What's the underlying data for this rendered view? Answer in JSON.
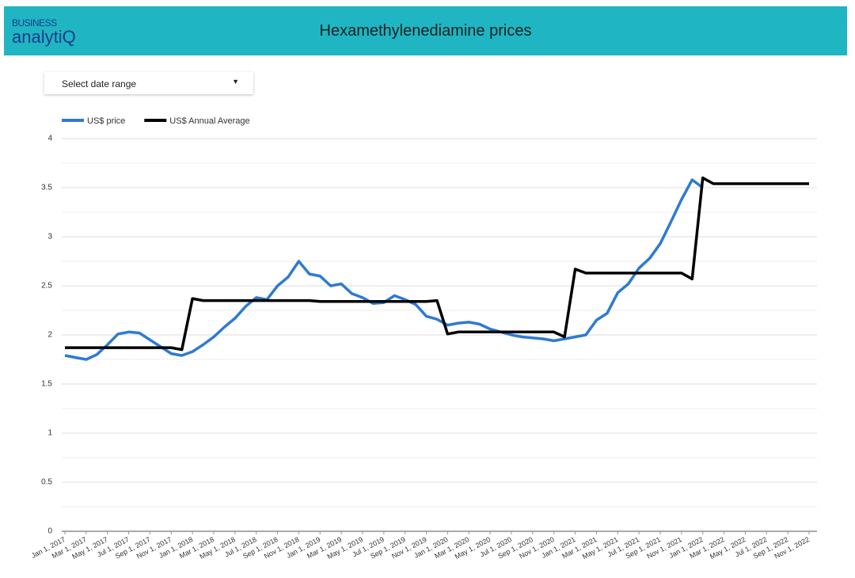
{
  "header": {
    "logo_top": "BUSINESS",
    "logo_bottom": "analytiQ"
  },
  "controls": {
    "date_range": "Select date range"
  },
  "chart_data": {
    "type": "line",
    "title": "Hexamethylenediamine prices",
    "x": [
      "2017-01-01",
      "2017-02-01",
      "2017-03-01",
      "2017-04-01",
      "2017-05-01",
      "2017-06-01",
      "2017-07-01",
      "2017-08-01",
      "2017-09-01",
      "2017-10-01",
      "2017-11-01",
      "2017-12-01",
      "2018-01-01",
      "2018-02-01",
      "2018-03-01",
      "2018-04-01",
      "2018-05-01",
      "2018-06-01",
      "2018-07-01",
      "2018-08-01",
      "2018-09-01",
      "2018-10-01",
      "2018-11-01",
      "2018-12-01",
      "2019-01-01",
      "2019-02-01",
      "2019-03-01",
      "2019-04-01",
      "2019-05-01",
      "2019-06-01",
      "2019-07-01",
      "2019-08-01",
      "2019-09-01",
      "2019-10-01",
      "2019-11-01",
      "2019-12-01",
      "2020-01-01",
      "2020-02-01",
      "2020-03-01",
      "2020-04-01",
      "2020-05-01",
      "2020-06-01",
      "2020-07-01",
      "2020-08-01",
      "2020-09-01",
      "2020-10-01",
      "2020-11-01",
      "2020-12-01",
      "2021-01-01",
      "2021-02-01",
      "2021-03-01",
      "2021-04-01",
      "2021-05-01",
      "2021-06-01",
      "2021-07-01",
      "2021-08-01",
      "2021-09-01",
      "2021-10-01",
      "2021-11-01",
      "2021-12-01",
      "2022-01-01",
      "2022-02-01",
      "2022-03-01",
      "2022-04-01",
      "2022-05-01",
      "2022-06-01",
      "2022-07-01",
      "2022-08-01",
      "2022-09-01",
      "2022-10-01",
      "2022-11-01"
    ],
    "series": [
      {
        "name": "US$ price",
        "color": "#2f7ad0",
        "values": [
          1.79,
          1.77,
          1.75,
          1.8,
          1.9,
          2.01,
          2.03,
          2.02,
          1.95,
          1.88,
          1.81,
          1.79,
          1.83,
          1.9,
          1.98,
          2.08,
          2.17,
          2.29,
          2.38,
          2.36,
          2.5,
          2.59,
          2.75,
          2.62,
          2.6,
          2.5,
          2.52,
          2.42,
          2.38,
          2.32,
          2.33,
          2.4,
          2.36,
          2.31,
          2.19,
          2.16,
          2.1,
          2.12,
          2.13,
          2.11,
          2.06,
          2.03,
          2.0,
          1.98,
          1.97,
          1.96,
          1.94,
          1.96,
          1.98,
          2.0,
          2.15,
          2.22,
          2.43,
          2.52,
          2.68,
          2.78,
          2.93,
          3.15,
          3.38,
          3.58,
          3.5,
          null,
          null,
          null,
          null,
          null,
          null,
          null,
          null,
          null,
          null
        ]
      },
      {
        "name": "US$ Annual Average",
        "color": "#000000",
        "values": [
          1.87,
          1.87,
          1.87,
          1.87,
          1.87,
          1.87,
          1.87,
          1.87,
          1.87,
          1.87,
          1.87,
          1.85,
          2.37,
          2.35,
          2.35,
          2.35,
          2.35,
          2.35,
          2.35,
          2.35,
          2.35,
          2.35,
          2.35,
          2.35,
          2.34,
          2.34,
          2.34,
          2.34,
          2.34,
          2.34,
          2.34,
          2.34,
          2.34,
          2.34,
          2.34,
          2.35,
          2.01,
          2.03,
          2.03,
          2.03,
          2.03,
          2.03,
          2.03,
          2.03,
          2.03,
          2.03,
          2.03,
          1.98,
          2.67,
          2.63,
          2.63,
          2.63,
          2.63,
          2.63,
          2.63,
          2.63,
          2.63,
          2.63,
          2.63,
          2.57,
          3.6,
          3.54,
          3.54,
          3.54,
          3.54,
          3.54,
          3.54,
          3.54,
          3.54,
          3.54,
          3.54
        ]
      }
    ],
    "xlim": [
      "2017-01-01",
      "2022-11-01"
    ],
    "xticks": [
      {
        "value": "2017-01-01",
        "label": "Jan 1, 2017"
      },
      {
        "value": "2017-03-01",
        "label": "Mar 1, 2017"
      },
      {
        "value": "2017-05-01",
        "label": "May 1, 2017"
      },
      {
        "value": "2017-07-01",
        "label": "Jul 1, 2017"
      },
      {
        "value": "2017-09-01",
        "label": "Sep 1, 2017"
      },
      {
        "value": "2017-11-01",
        "label": "Nov 1, 2017"
      },
      {
        "value": "2018-01-01",
        "label": "Jan 1, 2018"
      },
      {
        "value": "2018-03-01",
        "label": "Mar 1, 2018"
      },
      {
        "value": "2018-05-01",
        "label": "May 1, 2018"
      },
      {
        "value": "2018-07-01",
        "label": "Jul 1, 2018"
      },
      {
        "value": "2018-09-01",
        "label": "Sep 1, 2018"
      },
      {
        "value": "2018-11-01",
        "label": "Nov 1, 2018"
      },
      {
        "value": "2019-01-01",
        "label": "Jan 1, 2019"
      },
      {
        "value": "2019-03-01",
        "label": "Mar 1, 2019"
      },
      {
        "value": "2019-05-01",
        "label": "May 1, 2019"
      },
      {
        "value": "2019-07-01",
        "label": "Jul 1, 2019"
      },
      {
        "value": "2019-09-01",
        "label": "Sep 1, 2019"
      },
      {
        "value": "2019-11-01",
        "label": "Nov 1, 2019"
      },
      {
        "value": "2020-01-01",
        "label": "Jan 1, 2020"
      },
      {
        "value": "2020-03-01",
        "label": "Mar 1, 2020"
      },
      {
        "value": "2020-05-01",
        "label": "May 1, 2020"
      },
      {
        "value": "2020-07-01",
        "label": "Jul 1, 2020"
      },
      {
        "value": "2020-09-01",
        "label": "Sep 1, 2020"
      },
      {
        "value": "2020-11-01",
        "label": "Nov 1, 2020"
      },
      {
        "value": "2021-01-01",
        "label": "Jan 1, 2021"
      },
      {
        "value": "2021-03-01",
        "label": "Mar 1, 2021"
      },
      {
        "value": "2021-05-01",
        "label": "May 1, 2021"
      },
      {
        "value": "2021-07-01",
        "label": "Jul 1, 2021"
      },
      {
        "value": "2021-09-01",
        "label": "Sep 1, 2021"
      },
      {
        "value": "2021-11-01",
        "label": "Nov 1, 2021"
      },
      {
        "value": "2022-01-01",
        "label": "Jan 1, 2022"
      },
      {
        "value": "2022-03-01",
        "label": "Mar 1, 2022"
      },
      {
        "value": "2022-05-01",
        "label": "May 1, 2022"
      },
      {
        "value": "2022-07-01",
        "label": "Jul 1, 2022"
      },
      {
        "value": "2022-09-01",
        "label": "Sep 1, 2022"
      },
      {
        "value": "2022-11-01",
        "label": "Nov 1, 2022"
      }
    ],
    "ylim": [
      0,
      4
    ],
    "yticks": [
      0,
      0.5,
      1,
      1.5,
      2,
      2.5,
      3,
      3.5,
      4
    ],
    "yminor": [
      0.25,
      0.75,
      1.25,
      1.75,
      2.25,
      2.75,
      3.25,
      3.75
    ],
    "grid": true,
    "legend": "top-left"
  }
}
